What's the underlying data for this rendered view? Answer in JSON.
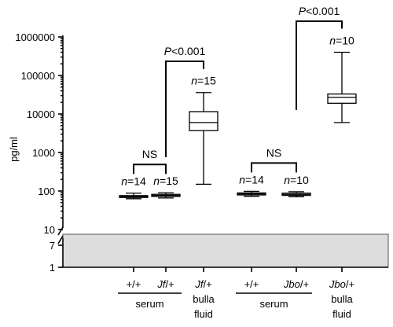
{
  "chart_data": {
    "type": "box",
    "ylabel": "pg/ml",
    "yscale": "log",
    "y_ticks": [
      "1000000",
      "100000",
      "10000",
      "1000",
      "100",
      "10",
      "7",
      "1"
    ],
    "y_break": {
      "lower_segment_ticks": [
        "7",
        "1"
      ],
      "shaded_below": 7
    },
    "groups": [
      {
        "n_label": "n",
        "n_value": "=14",
        "genotype": "+/+",
        "genotype_parts": [
          "",
          "+/+"
        ],
        "stats": {
          "min": 63,
          "q1": 68,
          "median": 72,
          "q3": 76,
          "max": 88
        }
      },
      {
        "n_label": "n",
        "n_value": "=15",
        "genotype": "Jf/+",
        "genotype_parts": [
          "Jf",
          "/+"
        ],
        "stats": {
          "min": 66,
          "q1": 72,
          "median": 77,
          "q3": 82,
          "max": 90
        }
      },
      {
        "n_label": "n",
        "n_value": "=15",
        "genotype": "Jf/+",
        "genotype_parts": [
          "Jf",
          "/+"
        ],
        "sublabel": [
          "bulla",
          "fluid"
        ],
        "stats": {
          "min": 150,
          "q1": 3700,
          "median": 6000,
          "q3": 11500,
          "max": 36000
        }
      },
      {
        "n_label": "n",
        "n_value": "=14",
        "genotype": "+/+",
        "genotype_parts": [
          "",
          "+/+"
        ],
        "stats": {
          "min": 73,
          "q1": 79,
          "median": 84,
          "q3": 89,
          "max": 98
        }
      },
      {
        "n_label": "n",
        "n_value": "=10",
        "genotype": "Jbo/+",
        "genotype_parts": [
          "Jbo",
          "/+"
        ],
        "stats": {
          "min": 71,
          "q1": 77,
          "median": 82,
          "q3": 88,
          "max": 96
        }
      },
      {
        "n_label": "n",
        "n_value": "=10",
        "genotype": "Jbo/+",
        "genotype_parts": [
          "Jbo",
          "/+"
        ],
        "sublabel": [
          "bulla",
          "fluid"
        ],
        "stats": {
          "min": 6000,
          "q1": 19000,
          "median": 27000,
          "q3": 33000,
          "max": 400000
        }
      }
    ],
    "serum_label": "serum",
    "comparisons": [
      {
        "label": "NS",
        "groups": [
          0,
          1
        ]
      },
      {
        "label": "NS",
        "groups": [
          3,
          4
        ]
      },
      {
        "p_letter": "P",
        "p_value": "<0.001",
        "groups": [
          1,
          2
        ]
      },
      {
        "p_letter": "P",
        "p_value": "<0.001",
        "groups": [
          4,
          5
        ]
      }
    ]
  }
}
